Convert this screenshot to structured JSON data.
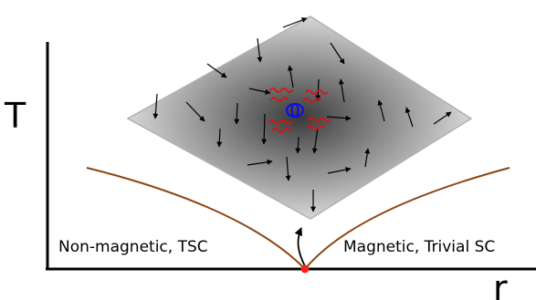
{
  "axes": {
    "y_label": "T",
    "x_label": "r"
  },
  "regions": {
    "left": "Non-magnetic, TSC",
    "right": "Magnetic, Trivial SC"
  },
  "colors": {
    "phase_boundary": "#8b4513",
    "critical_point": "#ff2020",
    "vortex": "#1010e0",
    "fluctuation": "#e01010",
    "plane_edge": "#b0b0b0"
  },
  "icons": {
    "spin": "arrow",
    "vortex": "vortex-icon",
    "fluctuation": "wavy-line"
  }
}
